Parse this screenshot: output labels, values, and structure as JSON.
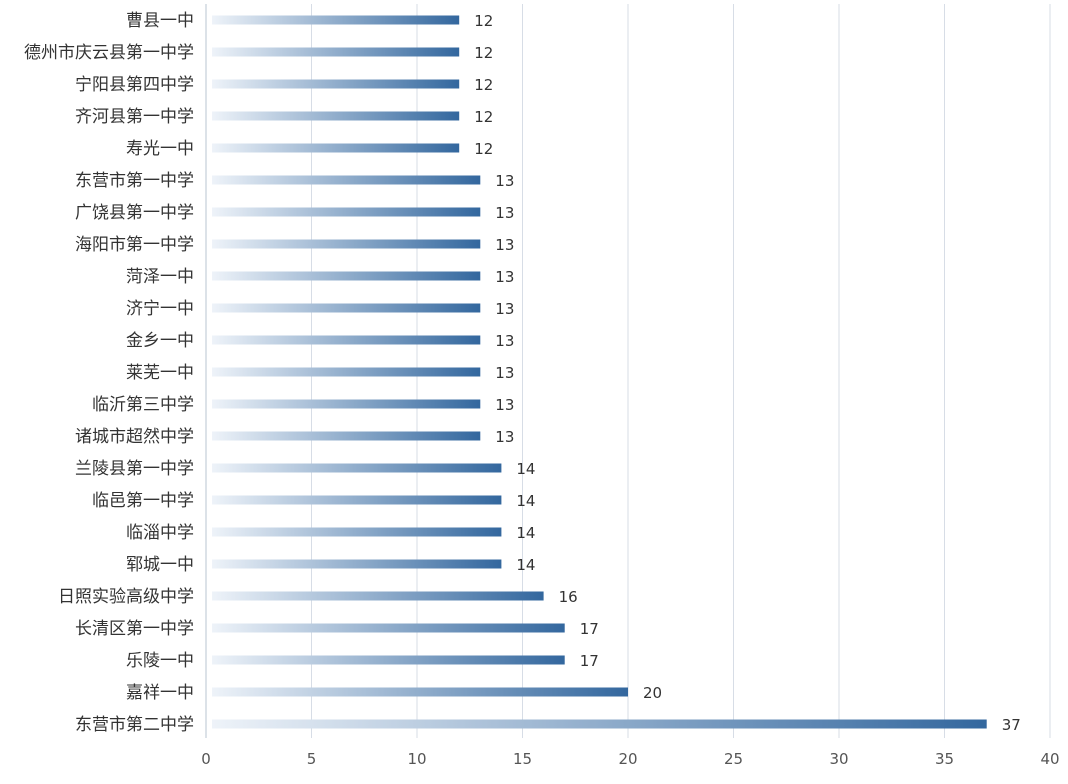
{
  "chart_data": {
    "type": "bar",
    "orientation": "horizontal",
    "categories": [
      "曹县一中",
      "德州市庆云县第一中学",
      "宁阳县第四中学",
      "齐河县第一中学",
      "寿光一中",
      "东营市第一中学",
      "广饶县第一中学",
      "海阳市第一中学",
      "菏泽一中",
      "济宁一中",
      "金乡一中",
      "莱芜一中",
      "临沂第三中学",
      "诸城市超然中学",
      "兰陵县第一中学",
      "临邑第一中学",
      "临淄中学",
      "郓城一中",
      "日照实验高级中学",
      "长清区第一中学",
      "乐陵一中",
      "嘉祥一中",
      "东营市第二中学"
    ],
    "values": [
      12,
      12,
      12,
      12,
      12,
      13,
      13,
      13,
      13,
      13,
      13,
      13,
      13,
      13,
      14,
      14,
      14,
      14,
      16,
      17,
      17,
      20,
      37
    ],
    "data_labels": [
      "12",
      "12",
      "12",
      "12",
      "12",
      "13",
      "13",
      "13",
      "13",
      "13",
      "13",
      "13",
      "13",
      "13",
      "14",
      "14",
      "14",
      "14",
      "16",
      "17",
      "17",
      "20",
      "37"
    ],
    "x_ticks": [
      "0",
      "5",
      "10",
      "15",
      "20",
      "25",
      "30",
      "35",
      "40"
    ],
    "xlim": [
      0,
      40
    ],
    "grid": true,
    "title": "",
    "xlabel": "",
    "ylabel": "",
    "colors": {
      "bar_start": "#eef3f9",
      "bar_end": "#33679e",
      "grid": "#d7dde6",
      "axis": "#b9c4d2",
      "text": "#333333",
      "tick_text": "#555555"
    }
  }
}
